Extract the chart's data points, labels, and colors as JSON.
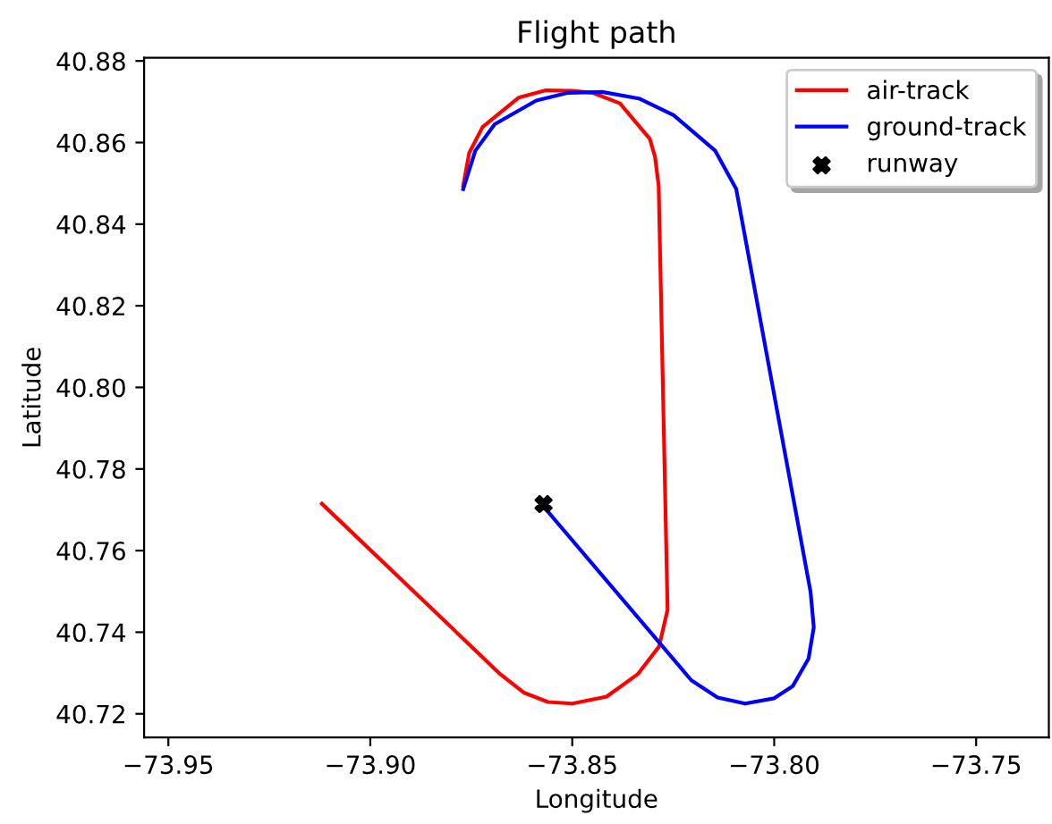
{
  "chart_data": {
    "type": "line",
    "title": "Flight path",
    "xlabel": "Longitude",
    "ylabel": "Latitude",
    "xlim": [
      -73.956,
      -73.732
    ],
    "ylim": [
      40.7142,
      40.8808
    ],
    "xticks": [
      {
        "value": -73.95,
        "label": "−73.95"
      },
      {
        "value": -73.9,
        "label": "−73.90"
      },
      {
        "value": -73.85,
        "label": "−73.85"
      },
      {
        "value": -73.8,
        "label": "−73.80"
      },
      {
        "value": -73.75,
        "label": "−73.75"
      }
    ],
    "yticks": [
      {
        "value": 40.72,
        "label": "40.72"
      },
      {
        "value": 40.74,
        "label": "40.74"
      },
      {
        "value": 40.76,
        "label": "40.76"
      },
      {
        "value": 40.78,
        "label": "40.78"
      },
      {
        "value": 40.8,
        "label": "40.80"
      },
      {
        "value": 40.82,
        "label": "40.82"
      },
      {
        "value": 40.84,
        "label": "40.84"
      },
      {
        "value": 40.86,
        "label": "40.86"
      },
      {
        "value": 40.88,
        "label": "40.88"
      }
    ],
    "grid": false,
    "legend": "top right",
    "series": [
      {
        "name": "air-track",
        "color": "#ff0000",
        "marker": "none",
        "x": [
          -73.912,
          -73.8678,
          -73.862,
          -73.856,
          -73.85,
          -73.8415,
          -73.8338,
          -73.8285,
          -73.8264,
          -73.8286,
          -73.8295,
          -73.8308,
          -73.8382,
          -73.845,
          -73.85,
          -73.8565,
          -73.8633,
          -73.8722,
          -73.8755,
          -73.877
        ],
        "values": [
          40.7715,
          40.7297,
          40.7252,
          40.7229,
          40.7225,
          40.7242,
          40.7297,
          40.7365,
          40.7455,
          40.8494,
          40.8565,
          40.8609,
          40.8696,
          40.8722,
          40.8727,
          40.8728,
          40.871,
          40.8638,
          40.8575,
          40.8494
        ]
      },
      {
        "name": "ground-track",
        "color": "#0000ff",
        "marker": "none",
        "x": [
          -73.8571,
          -73.8205,
          -73.814,
          -73.8072,
          -73.8,
          -73.7954,
          -73.7915,
          -73.7902,
          -73.791,
          -73.8094,
          -73.8146,
          -73.8249,
          -73.8335,
          -73.8426,
          -73.851,
          -73.8589,
          -73.8692,
          -73.874,
          -73.877
        ],
        "values": [
          40.7708,
          40.7282,
          40.724,
          40.7225,
          40.7238,
          40.7268,
          40.7335,
          40.7412,
          40.7499,
          40.8486,
          40.858,
          40.8667,
          40.8708,
          40.8724,
          40.8722,
          40.8703,
          40.8645,
          40.858,
          40.8486
        ]
      },
      {
        "name": "runway",
        "color": "#000000",
        "type": "scatter",
        "marker": "cross",
        "x": [
          -73.8571
        ],
        "values": [
          40.7714
        ]
      }
    ]
  }
}
